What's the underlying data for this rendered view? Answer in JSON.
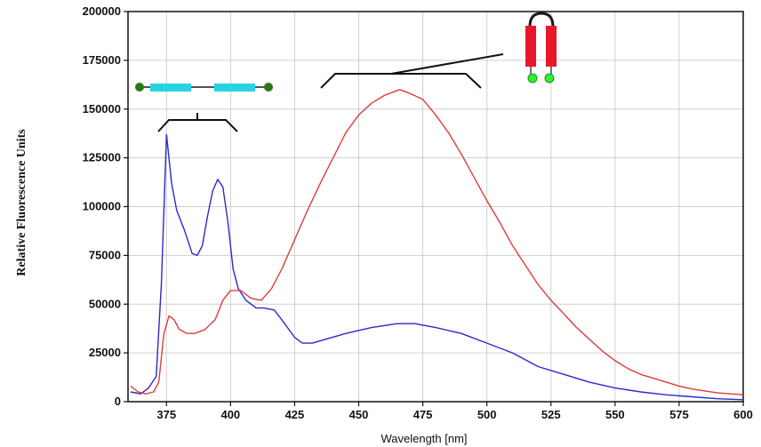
{
  "chart_data": {
    "type": "line",
    "title": "",
    "xlabel": "Wavelength [nm]",
    "ylabel": "Relative Fluorescence Units",
    "xlim": [
      360,
      600
    ],
    "ylim": [
      0,
      200000
    ],
    "x_ticks": [
      375,
      400,
      425,
      450,
      475,
      500,
      525,
      550,
      575,
      600
    ],
    "y_ticks": [
      0,
      25000,
      50000,
      75000,
      100000,
      125000,
      150000,
      175000,
      200000
    ],
    "grid": true,
    "series": [
      {
        "color": "#2a2ad0",
        "points": [
          [
            361,
            5000
          ],
          [
            365,
            4000
          ],
          [
            368,
            7000
          ],
          [
            371,
            13000
          ],
          [
            373,
            60000
          ],
          [
            375,
            137000
          ],
          [
            377,
            112000
          ],
          [
            379,
            98000
          ],
          [
            382,
            88000
          ],
          [
            385,
            76000
          ],
          [
            387,
            75000
          ],
          [
            389,
            80000
          ],
          [
            391,
            95000
          ],
          [
            393,
            108000
          ],
          [
            395,
            114000
          ],
          [
            397,
            110000
          ],
          [
            399,
            92000
          ],
          [
            401,
            68000
          ],
          [
            403,
            58000
          ],
          [
            406,
            52000
          ],
          [
            410,
            48000
          ],
          [
            413,
            48000
          ],
          [
            417,
            47000
          ],
          [
            420,
            42000
          ],
          [
            425,
            33000
          ],
          [
            428,
            30000
          ],
          [
            432,
            30000
          ],
          [
            437,
            32000
          ],
          [
            445,
            35000
          ],
          [
            455,
            38000
          ],
          [
            465,
            40000
          ],
          [
            472,
            40000
          ],
          [
            480,
            38000
          ],
          [
            490,
            35000
          ],
          [
            500,
            30000
          ],
          [
            510,
            25000
          ],
          [
            520,
            18000
          ],
          [
            530,
            14000
          ],
          [
            540,
            10000
          ],
          [
            550,
            7000
          ],
          [
            560,
            5000
          ],
          [
            570,
            3500
          ],
          [
            580,
            2500
          ],
          [
            590,
            1500
          ],
          [
            600,
            1000
          ]
        ]
      },
      {
        "color": "#e03b3b",
        "points": [
          [
            361,
            8000
          ],
          [
            364,
            5000
          ],
          [
            367,
            4000
          ],
          [
            370,
            5000
          ],
          [
            372,
            10000
          ],
          [
            374,
            35000
          ],
          [
            376,
            44000
          ],
          [
            378,
            42000
          ],
          [
            380,
            37000
          ],
          [
            383,
            35000
          ],
          [
            386,
            35000
          ],
          [
            390,
            37000
          ],
          [
            394,
            42000
          ],
          [
            397,
            52000
          ],
          [
            400,
            57000
          ],
          [
            404,
            57000
          ],
          [
            408,
            53000
          ],
          [
            412,
            52000
          ],
          [
            416,
            58000
          ],
          [
            420,
            68000
          ],
          [
            425,
            83000
          ],
          [
            430,
            98000
          ],
          [
            435,
            112000
          ],
          [
            440,
            125000
          ],
          [
            445,
            138000
          ],
          [
            450,
            147000
          ],
          [
            455,
            153000
          ],
          [
            460,
            157000
          ],
          [
            466,
            160000
          ],
          [
            470,
            158000
          ],
          [
            475,
            155000
          ],
          [
            480,
            147000
          ],
          [
            485,
            138000
          ],
          [
            490,
            127000
          ],
          [
            495,
            115000
          ],
          [
            500,
            103000
          ],
          [
            505,
            92000
          ],
          [
            510,
            80000
          ],
          [
            515,
            70000
          ],
          [
            520,
            60000
          ],
          [
            525,
            52000
          ],
          [
            530,
            45000
          ],
          [
            535,
            38000
          ],
          [
            540,
            32000
          ],
          [
            545,
            26000
          ],
          [
            550,
            21000
          ],
          [
            555,
            17000
          ],
          [
            560,
            14000
          ],
          [
            565,
            12000
          ],
          [
            570,
            10000
          ],
          [
            575,
            8000
          ],
          [
            580,
            6500
          ],
          [
            585,
            5500
          ],
          [
            590,
            4500
          ],
          [
            595,
            4000
          ],
          [
            600,
            3500
          ]
        ]
      }
    ],
    "annotations": [
      {
        "type": "linear-dna-icon",
        "attached_bracket": "bracket-left"
      },
      {
        "type": "hairpin-dna-icon",
        "attached_bracket": "bracket-right"
      }
    ]
  },
  "colors": {
    "frame": "#111111",
    "grid": "#cfcfcf",
    "strand_linear": "#29d4e0",
    "strand_hairpin": "#e8182a",
    "fluorophore_green": "#2a7a1a",
    "quencher_green": "#33ee33"
  }
}
